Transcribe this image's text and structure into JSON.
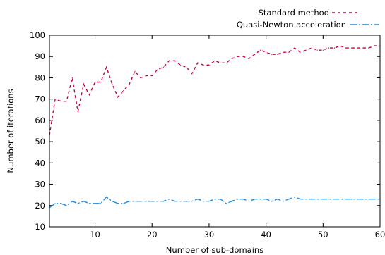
{
  "chart_data": {
    "type": "line",
    "title": "",
    "xlabel": "Number of sub-domains",
    "ylabel": "Number of iterations",
    "xlim": [
      2,
      60
    ],
    "ylim": [
      10,
      100
    ],
    "xticks": [
      10,
      20,
      30,
      40,
      50,
      60
    ],
    "yticks": [
      10,
      20,
      30,
      40,
      50,
      60,
      70,
      80,
      90,
      100
    ],
    "grid": false,
    "legend_position": "top-right, outside plot",
    "series": [
      {
        "name": "Standard method",
        "color": "#c8003c",
        "dash": "dashed",
        "x": [
          2,
          3,
          4,
          5,
          6,
          7,
          8,
          9,
          10,
          11,
          12,
          13,
          14,
          15,
          16,
          17,
          18,
          19,
          20,
          21,
          22,
          23,
          24,
          25,
          26,
          27,
          28,
          29,
          30,
          31,
          32,
          33,
          34,
          35,
          36,
          37,
          38,
          39,
          40,
          41,
          42,
          43,
          44,
          45,
          46,
          47,
          48,
          49,
          50,
          51,
          52,
          53,
          54,
          55,
          56,
          57,
          58,
          59,
          60
        ],
        "y": [
          53,
          70,
          69,
          69,
          80,
          64,
          77,
          72,
          78,
          78,
          85,
          77,
          71,
          74,
          77,
          83,
          80,
          81,
          81,
          84,
          85,
          88,
          88,
          86,
          85,
          82,
          87,
          86,
          86,
          88,
          87,
          87,
          89,
          90,
          90,
          89,
          91,
          93,
          92,
          91,
          91,
          92,
          92,
          94,
          92,
          93,
          94,
          93,
          93,
          94,
          94,
          95,
          94,
          94,
          94,
          94,
          94,
          95,
          95
        ]
      },
      {
        "name": "Quasi-Newton acceleration",
        "color": "#1e8cdc",
        "dash": "dash-dot",
        "x": [
          2,
          3,
          4,
          5,
          6,
          7,
          8,
          9,
          10,
          11,
          12,
          13,
          14,
          15,
          16,
          17,
          18,
          19,
          20,
          21,
          22,
          23,
          24,
          25,
          26,
          27,
          28,
          29,
          30,
          31,
          32,
          33,
          34,
          35,
          36,
          37,
          38,
          39,
          40,
          41,
          42,
          43,
          44,
          45,
          46,
          47,
          48,
          49,
          50,
          51,
          52,
          53,
          54,
          55,
          56,
          57,
          58,
          59,
          60
        ],
        "y": [
          19,
          21,
          21,
          20,
          22,
          21,
          22,
          21,
          21,
          21,
          24,
          22,
          21,
          21,
          22,
          22,
          22,
          22,
          22,
          22,
          22,
          23,
          22,
          22,
          22,
          22,
          23,
          22,
          22,
          23,
          23,
          21,
          22,
          23,
          23,
          22,
          23,
          23,
          23,
          22,
          23,
          22,
          23,
          24,
          23,
          23,
          23,
          23,
          23,
          23,
          23,
          23,
          23,
          23,
          23,
          23,
          23,
          23,
          23
        ]
      }
    ]
  }
}
